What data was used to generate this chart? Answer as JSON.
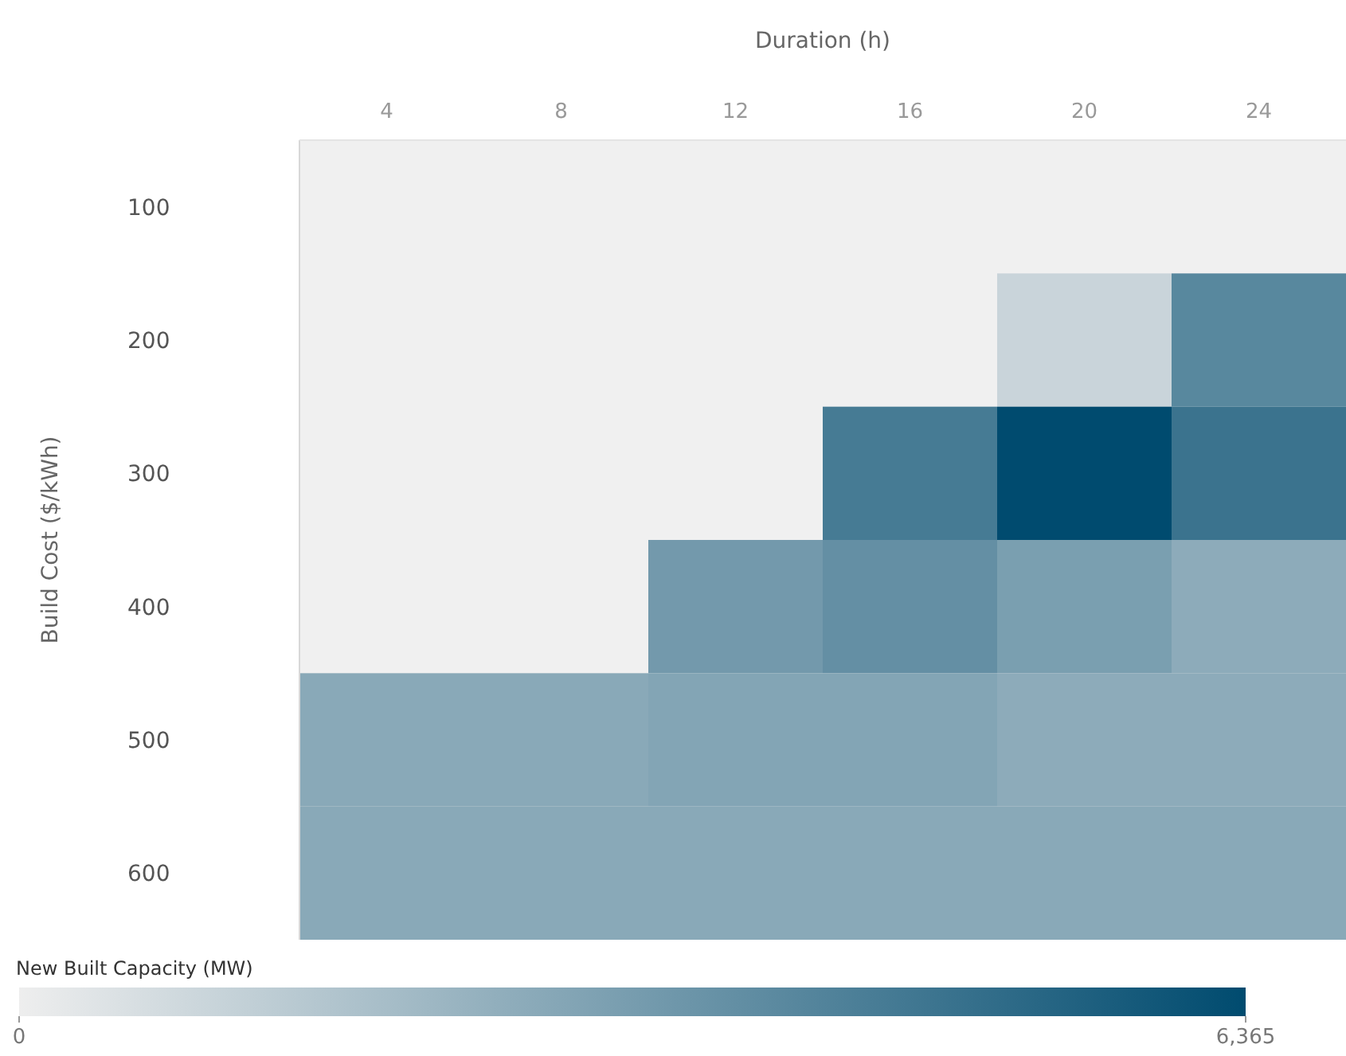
{
  "chart_data": {
    "type": "heatmap",
    "xlabel": "Duration (h)",
    "ylabel": "Build Cost ($/kWh)",
    "clabel": "New Built Capacity (MW)",
    "categories": [
      "4",
      "8",
      "12",
      "16",
      "20",
      "24"
    ],
    "y_categories": [
      "100",
      "200",
      "300",
      "400",
      "500",
      "600"
    ],
    "cells": [
      [
        null,
        null,
        null,
        null,
        null,
        null
      ],
      [
        null,
        null,
        null,
        null,
        1000,
        4000
      ],
      [
        null,
        null,
        null,
        4500,
        6365,
        4800
      ],
      [
        null,
        null,
        3300,
        3700,
        3100,
        2600
      ],
      [
        2700,
        2700,
        2850,
        2850,
        2600,
        2600
      ],
      [
        2700,
        2700,
        2700,
        2700,
        2700,
        2700
      ]
    ],
    "clim": [
      0,
      6365
    ],
    "cticks": [
      0,
      {
        "value": 6365,
        "label": "6,365"
      }
    ]
  }
}
